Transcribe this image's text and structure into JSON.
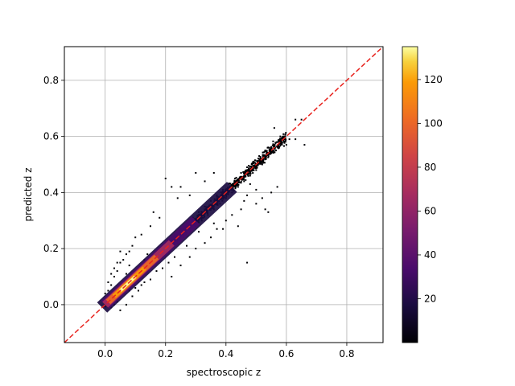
{
  "chart_data": {
    "type": "scatter",
    "variant": "density-colored scatter with 1:1 reference line",
    "xlabel": "spectroscopic z",
    "ylabel": "predicted z",
    "xlim": [
      -0.135,
      0.92
    ],
    "ylim": [
      -0.135,
      0.92
    ],
    "xticks": [
      0.0,
      0.2,
      0.4,
      0.6,
      0.8
    ],
    "xtick_labels": [
      "0.0",
      "0.2",
      "0.4",
      "0.6",
      "0.8"
    ],
    "yticks": [
      0.0,
      0.2,
      0.4,
      0.6,
      0.8
    ],
    "ytick_labels": [
      "0.0",
      "0.2",
      "0.4",
      "0.6",
      "0.8"
    ],
    "grid": true,
    "reference_line": {
      "from": [
        -0.135,
        -0.135
      ],
      "to": [
        0.92,
        0.92
      ],
      "color": "#e8231e",
      "style": "dashed"
    },
    "colorbar": {
      "colormap": "inferno",
      "min": 0,
      "max": 135,
      "ticks": [
        20,
        40,
        60,
        80,
        100,
        120
      ],
      "tick_labels": [
        "20",
        "40",
        "60",
        "80",
        "100",
        "120"
      ]
    },
    "point_cloud": {
      "description_of_trend": "tight cluster along y = x",
      "points": [
        [
          0.02,
          0.03
        ],
        [
          0.03,
          0.02
        ],
        [
          0.04,
          0.05
        ],
        [
          0.05,
          0.04
        ],
        [
          0.06,
          0.07
        ],
        [
          0.07,
          0.06
        ],
        [
          0.08,
          0.09
        ],
        [
          0.09,
          0.08
        ],
        [
          0.1,
          0.11
        ],
        [
          0.11,
          0.1
        ],
        [
          0.12,
          0.13
        ],
        [
          0.13,
          0.12
        ],
        [
          0.14,
          0.15
        ],
        [
          0.15,
          0.14
        ],
        [
          0.16,
          0.17
        ],
        [
          0.17,
          0.16
        ],
        [
          0.01,
          0.05
        ],
        [
          0.02,
          0.07
        ],
        [
          0.03,
          0.1
        ],
        [
          0.04,
          0.12
        ],
        [
          0.05,
          0.15
        ],
        [
          0.06,
          0.16
        ],
        [
          0.07,
          0.11
        ],
        [
          0.08,
          0.14
        ],
        [
          0.05,
          -0.02
        ],
        [
          0.07,
          0.0
        ],
        [
          0.09,
          0.03
        ],
        [
          0.11,
          0.05
        ],
        [
          0.13,
          0.08
        ],
        [
          0.15,
          0.09
        ],
        [
          0.17,
          0.12
        ],
        [
          0.19,
          0.13
        ],
        [
          0.18,
          0.2
        ],
        [
          0.2,
          0.19
        ],
        [
          0.21,
          0.23
        ],
        [
          0.22,
          0.2
        ],
        [
          0.23,
          0.25
        ],
        [
          0.24,
          0.22
        ],
        [
          0.25,
          0.27
        ],
        [
          0.26,
          0.24
        ],
        [
          0.27,
          0.29
        ],
        [
          0.28,
          0.26
        ],
        [
          0.29,
          0.31
        ],
        [
          0.3,
          0.28
        ],
        [
          0.31,
          0.33
        ],
        [
          0.32,
          0.3
        ],
        [
          0.33,
          0.35
        ],
        [
          0.34,
          0.32
        ],
        [
          0.35,
          0.37
        ],
        [
          0.36,
          0.34
        ],
        [
          0.37,
          0.39
        ],
        [
          0.38,
          0.36
        ],
        [
          0.39,
          0.41
        ],
        [
          0.4,
          0.38
        ],
        [
          0.41,
          0.43
        ],
        [
          0.42,
          0.4
        ],
        [
          0.43,
          0.45
        ],
        [
          0.44,
          0.42
        ],
        [
          0.45,
          0.47
        ],
        [
          0.46,
          0.44
        ],
        [
          0.47,
          0.49
        ],
        [
          0.48,
          0.46
        ],
        [
          0.49,
          0.51
        ],
        [
          0.5,
          0.48
        ],
        [
          0.51,
          0.53
        ],
        [
          0.52,
          0.5
        ],
        [
          0.53,
          0.55
        ],
        [
          0.55,
          0.54
        ],
        [
          0.57,
          0.58
        ],
        [
          0.59,
          0.6
        ],
        [
          0.61,
          0.59
        ],
        [
          0.63,
          0.66
        ],
        [
          0.65,
          0.66
        ],
        [
          0.66,
          0.57
        ],
        [
          0.63,
          0.59
        ],
        [
          0.6,
          0.57
        ],
        [
          0.58,
          0.6
        ],
        [
          0.56,
          0.63
        ],
        [
          0.54,
          0.56
        ],
        [
          0.53,
          0.52
        ],
        [
          0.2,
          0.45
        ],
        [
          0.22,
          0.42
        ],
        [
          0.24,
          0.38
        ],
        [
          0.25,
          0.42
        ],
        [
          0.16,
          0.33
        ],
        [
          0.18,
          0.31
        ],
        [
          0.15,
          0.28
        ],
        [
          0.12,
          0.25
        ],
        [
          0.1,
          0.24
        ],
        [
          0.09,
          0.21
        ],
        [
          0.08,
          0.19
        ],
        [
          0.07,
          0.18
        ],
        [
          0.3,
          0.47
        ],
        [
          0.33,
          0.44
        ],
        [
          0.36,
          0.47
        ],
        [
          0.28,
          0.39
        ],
        [
          0.22,
          0.1
        ],
        [
          0.25,
          0.14
        ],
        [
          0.28,
          0.17
        ],
        [
          0.3,
          0.2
        ],
        [
          0.33,
          0.22
        ],
        [
          0.35,
          0.24
        ],
        [
          0.37,
          0.27
        ],
        [
          0.4,
          0.3
        ],
        [
          0.42,
          0.32
        ],
        [
          0.45,
          0.34
        ],
        [
          0.47,
          0.15
        ],
        [
          0.44,
          0.28
        ],
        [
          0.5,
          0.36
        ],
        [
          0.52,
          0.38
        ],
        [
          0.55,
          0.4
        ],
        [
          0.57,
          0.42
        ],
        [
          0.53,
          0.34
        ],
        [
          0.54,
          0.33
        ],
        [
          0.5,
          0.41
        ],
        [
          0.48,
          0.43
        ],
        [
          0.47,
          0.39
        ],
        [
          0.46,
          0.37
        ],
        [
          0.39,
          0.27
        ],
        [
          0.36,
          0.29
        ],
        [
          0.31,
          0.26
        ],
        [
          0.27,
          0.21
        ],
        [
          0.23,
          0.17
        ],
        [
          0.21,
          0.15
        ],
        [
          0.19,
          0.17
        ],
        [
          0.17,
          0.19
        ],
        [
          0.14,
          0.18
        ],
        [
          0.13,
          0.16
        ],
        [
          0.12,
          0.07
        ],
        [
          0.1,
          0.06
        ],
        [
          0.08,
          0.05
        ],
        [
          0.06,
          0.04
        ],
        [
          0.04,
          0.01
        ],
        [
          0.03,
          0.0
        ],
        [
          0.02,
          -0.01
        ],
        [
          0.01,
          0.02
        ],
        [
          0.0,
          0.0
        ],
        [
          0.01,
          0.01
        ],
        [
          0.0,
          0.04
        ],
        [
          0.01,
          0.08
        ],
        [
          0.02,
          0.11
        ],
        [
          0.03,
          0.13
        ],
        [
          0.04,
          0.15
        ],
        [
          0.05,
          0.19
        ]
      ]
    },
    "density_core": {
      "description": "bright high-density core along y = x",
      "segments": [
        {
          "x0": 0.0,
          "x1": 0.2,
          "color": "#fcd94a"
        },
        {
          "x0": 0.02,
          "x1": 0.18,
          "color": "#f78311"
        },
        {
          "x0": 0.04,
          "x1": 0.14,
          "color": "#fcfdbf"
        }
      ]
    }
  }
}
